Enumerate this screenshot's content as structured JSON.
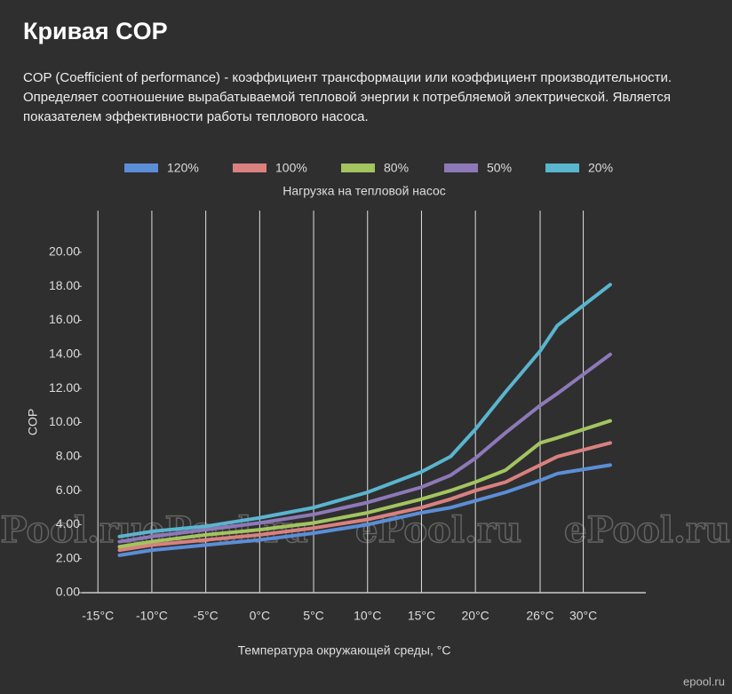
{
  "header": {
    "title": "Кривая COP",
    "description": "COP (Coefficient of performance) - коэффициент трансформации или коэффициент производительности. Определяет соотношение вырабатываемой тепловой энергии к потребляемой электрической. Является показателем эффективности работы теплового насоса."
  },
  "chart_data": {
    "type": "line",
    "legend_title": "Нагрузка на тепловой насос",
    "xlabel": "Температура окружающей среды, °C",
    "ylabel": "COP",
    "x": [
      -13,
      -10,
      -5,
      0,
      5,
      10,
      15,
      17.7,
      20,
      22.8,
      26,
      27.6,
      32.5
    ],
    "series": [
      {
        "name": "120%",
        "color": "#5b8ed6",
        "values": [
          2.2,
          2.5,
          2.8,
          3.1,
          3.5,
          4.0,
          4.7,
          5.0,
          5.4,
          5.9,
          6.6,
          7.0,
          7.5
        ]
      },
      {
        "name": "100%",
        "color": "#d9817f",
        "values": [
          2.5,
          2.8,
          3.1,
          3.4,
          3.8,
          4.3,
          5.0,
          5.5,
          6.0,
          6.5,
          7.5,
          8.0,
          8.8
        ]
      },
      {
        "name": "80%",
        "color": "#a3c45f",
        "values": [
          2.7,
          3.0,
          3.4,
          3.7,
          4.1,
          4.7,
          5.5,
          6.0,
          6.5,
          7.2,
          8.8,
          9.1,
          10.1
        ]
      },
      {
        "name": "50%",
        "color": "#8d79b8",
        "values": [
          3.0,
          3.3,
          3.7,
          4.1,
          4.6,
          5.3,
          6.2,
          6.9,
          7.9,
          9.4,
          11.0,
          11.7,
          14.0
        ]
      },
      {
        "name": "20%",
        "color": "#5ab5cf",
        "values": [
          3.3,
          3.6,
          3.9,
          4.4,
          5.0,
          5.9,
          7.1,
          8.0,
          9.6,
          11.8,
          14.2,
          15.7,
          18.1
        ]
      }
    ],
    "xlim": [
      -16.5,
      35.8
    ],
    "xticks": [
      {
        "value": -15,
        "label": "-15°C"
      },
      {
        "value": -10,
        "label": "-10°C"
      },
      {
        "value": -5,
        "label": "-5°C"
      },
      {
        "value": 0,
        "label": "0°C"
      },
      {
        "value": 5,
        "label": "5°C"
      },
      {
        "value": 10,
        "label": "10°C"
      },
      {
        "value": 15,
        "label": "15°C"
      },
      {
        "value": 20,
        "label": "20°C"
      },
      {
        "value": 26,
        "label": "26°C"
      },
      {
        "value": 30,
        "label": "30°C"
      }
    ],
    "ylim": [
      0,
      22.45
    ],
    "yticks": [
      {
        "value": 0,
        "label": "0.00"
      },
      {
        "value": 2,
        "label": "2.00"
      },
      {
        "value": 4,
        "label": "4.00"
      },
      {
        "value": 6,
        "label": "6.00"
      },
      {
        "value": 8,
        "label": "8.00"
      },
      {
        "value": 10,
        "label": "10.00"
      },
      {
        "value": 12,
        "label": "12.00"
      },
      {
        "value": 14,
        "label": "14.00"
      },
      {
        "value": 16,
        "label": "16.00"
      },
      {
        "value": 18,
        "label": "18.00"
      },
      {
        "value": 20,
        "label": "20.00"
      }
    ],
    "grid": true,
    "legend": "top"
  },
  "watermark": "ePool.ru",
  "logo": "epool.ru"
}
